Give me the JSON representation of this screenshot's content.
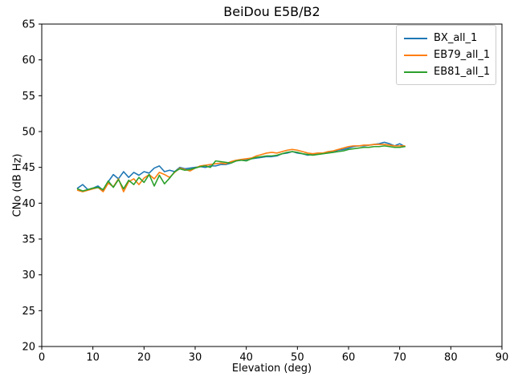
{
  "chart_data": {
    "type": "line",
    "title": "BeiDou E5B/B2",
    "xlabel": "Elevation (deg)",
    "ylabel": "CNo (dB Hz)",
    "xlim": [
      0,
      90
    ],
    "ylim": [
      20,
      65
    ],
    "xticks": [
      0,
      10,
      20,
      30,
      40,
      50,
      60,
      70,
      80,
      90
    ],
    "yticks": [
      20,
      25,
      30,
      35,
      40,
      45,
      50,
      55,
      60,
      65
    ],
    "grid": false,
    "legend_position": "upper right",
    "x": [
      7,
      8,
      9,
      10,
      11,
      12,
      13,
      14,
      15,
      16,
      17,
      18,
      19,
      20,
      21,
      22,
      23,
      24,
      25,
      26,
      27,
      28,
      29,
      30,
      31,
      32,
      33,
      34,
      35,
      36,
      37,
      38,
      39,
      40,
      41,
      42,
      43,
      44,
      45,
      46,
      47,
      48,
      49,
      50,
      51,
      52,
      53,
      54,
      55,
      56,
      57,
      58,
      59,
      60,
      61,
      62,
      63,
      64,
      65,
      66,
      67,
      68,
      69,
      70,
      71
    ],
    "series": [
      {
        "name": "BX_all_1",
        "color": "#1f77b4",
        "values": [
          42.1,
          42.6,
          41.9,
          42.1,
          42.4,
          41.8,
          43.0,
          44.0,
          43.4,
          44.4,
          43.6,
          44.3,
          43.9,
          44.4,
          44.2,
          44.9,
          45.2,
          44.4,
          44.6,
          44.4,
          45.0,
          44.8,
          44.9,
          45.0,
          45.1,
          45.0,
          45.2,
          45.2,
          45.4,
          45.4,
          45.6,
          45.9,
          46.0,
          46.1,
          46.2,
          46.3,
          46.4,
          46.5,
          46.5,
          46.6,
          46.9,
          47.0,
          47.2,
          47.0,
          46.9,
          46.7,
          46.8,
          47.0,
          47.0,
          47.1,
          47.2,
          47.4,
          47.5,
          47.7,
          47.9,
          48.0,
          48.0,
          48.1,
          48.2,
          48.3,
          48.5,
          48.3,
          48.0,
          48.3,
          47.9
        ]
      },
      {
        "name": "EB79_all_1",
        "color": "#ff7f0e",
        "values": [
          41.8,
          41.6,
          41.8,
          42.0,
          42.2,
          41.6,
          42.8,
          42.3,
          43.4,
          41.6,
          43.0,
          43.4,
          42.6,
          43.5,
          44.0,
          43.4,
          44.3,
          44.0,
          43.6,
          44.3,
          44.9,
          44.7,
          44.5,
          44.9,
          45.2,
          45.3,
          45.4,
          45.5,
          45.6,
          45.5,
          45.8,
          46.0,
          46.1,
          46.2,
          46.3,
          46.6,
          46.8,
          47.0,
          47.1,
          47.0,
          47.2,
          47.4,
          47.5,
          47.4,
          47.2,
          47.0,
          46.9,
          47.0,
          47.0,
          47.2,
          47.3,
          47.5,
          47.7,
          47.9,
          48.0,
          48.0,
          48.1,
          48.1,
          48.2,
          48.2,
          48.2,
          48.1,
          48.0,
          48.0,
          48.0
        ]
      },
      {
        "name": "EB81_all_1",
        "color": "#2ca02c",
        "values": [
          42.0,
          41.7,
          41.9,
          42.1,
          42.2,
          41.9,
          43.1,
          42.2,
          43.3,
          42.0,
          43.2,
          42.6,
          43.6,
          42.9,
          44.0,
          42.4,
          43.9,
          42.7,
          43.5,
          44.4,
          44.8,
          44.6,
          44.7,
          44.9,
          45.1,
          45.2,
          45.0,
          45.9,
          45.8,
          45.7,
          45.6,
          45.9,
          46.0,
          45.9,
          46.2,
          46.4,
          46.5,
          46.6,
          46.6,
          46.7,
          46.9,
          47.1,
          47.2,
          47.1,
          46.9,
          46.8,
          46.7,
          46.8,
          46.9,
          47.0,
          47.1,
          47.2,
          47.3,
          47.5,
          47.6,
          47.7,
          47.8,
          47.8,
          47.9,
          47.9,
          48.0,
          47.9,
          47.8,
          47.8,
          47.9
        ]
      }
    ]
  }
}
